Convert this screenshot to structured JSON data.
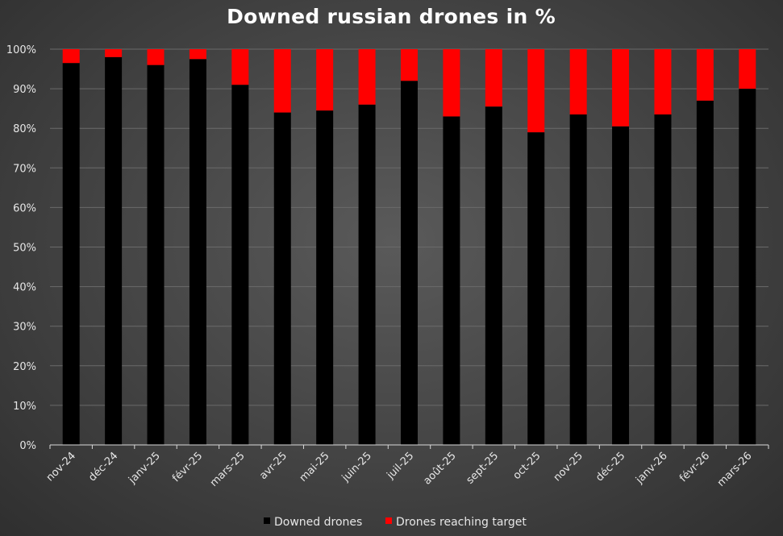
{
  "chart_data": {
    "type": "bar",
    "stacked": true,
    "title": "Downed russian drones in %",
    "xlabel": "",
    "ylabel": "",
    "ylim": [
      0,
      100
    ],
    "yticks": [
      "0%",
      "10%",
      "20%",
      "30%",
      "40%",
      "50%",
      "60%",
      "70%",
      "80%",
      "90%",
      "100%"
    ],
    "categories": [
      "nov-24",
      "déc-24",
      "janv-25",
      "févr-25",
      "mars-25",
      "avr-25",
      "mai-25",
      "juin-25",
      "juil-25",
      "août-25",
      "sept-25",
      "oct-25",
      "nov-25",
      "déc-25",
      "janv-26",
      "févr-26",
      "mars-26"
    ],
    "series": [
      {
        "name": "Downed drones",
        "color": "#000000",
        "values": [
          96.5,
          98,
          96,
          97.5,
          91,
          84,
          84.5,
          86,
          92,
          83,
          85.5,
          79,
          83.5,
          80.5,
          83.5,
          87,
          90
        ]
      },
      {
        "name": "Drones reaching target",
        "color": "#ff0000",
        "values": [
          3.5,
          2,
          4,
          2.5,
          9,
          16,
          15.5,
          14,
          8,
          17,
          14.5,
          21,
          16.5,
          19.5,
          16.5,
          13,
          10
        ]
      }
    ],
    "legend_position": "bottom-center",
    "grid": true
  }
}
